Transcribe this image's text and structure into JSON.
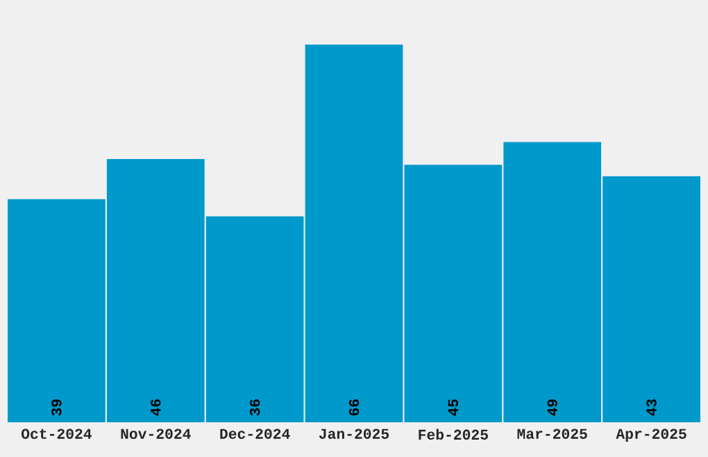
{
  "chart_data": {
    "type": "bar",
    "categories": [
      "Oct-2024",
      "Nov-2024",
      "Dec-2024",
      "Jan-2025",
      "Feb-2025",
      "Mar-2025",
      "Apr-2025"
    ],
    "values": [
      39,
      46,
      36,
      66,
      45,
      49,
      43
    ],
    "color": "#0099cc",
    "data_labels": true,
    "tick_labels": "x"
  }
}
